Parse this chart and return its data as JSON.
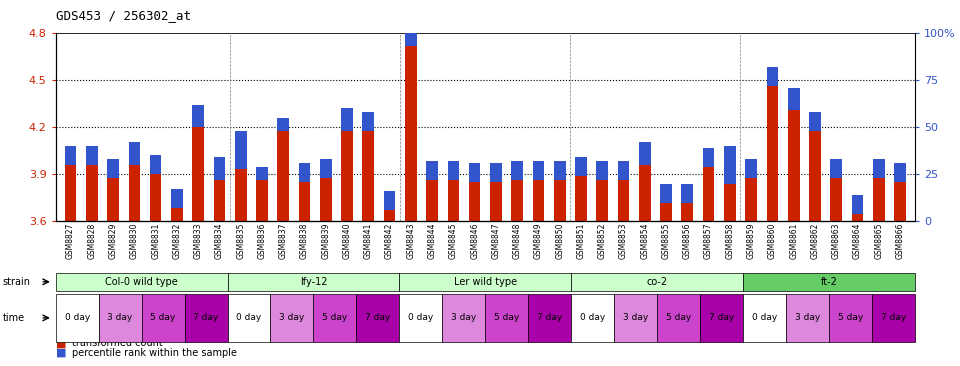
{
  "title": "GDS453 / 256302_at",
  "samples": [
    "GSM8827",
    "GSM8828",
    "GSM8829",
    "GSM8830",
    "GSM8831",
    "GSM8832",
    "GSM8833",
    "GSM8834",
    "GSM8835",
    "GSM8836",
    "GSM8837",
    "GSM8838",
    "GSM8839",
    "GSM8840",
    "GSM8841",
    "GSM8842",
    "GSM8843",
    "GSM8844",
    "GSM8845",
    "GSM8846",
    "GSM8847",
    "GSM8848",
    "GSM8849",
    "GSM8850",
    "GSM8851",
    "GSM8852",
    "GSM8853",
    "GSM8854",
    "GSM8855",
    "GSM8856",
    "GSM8857",
    "GSM8858",
    "GSM8859",
    "GSM8860",
    "GSM8861",
    "GSM8862",
    "GSM8863",
    "GSM8864",
    "GSM8865",
    "GSM8866"
  ],
  "red_pct": [
    30,
    30,
    23,
    30,
    25,
    7,
    50,
    22,
    28,
    22,
    48,
    21,
    23,
    48,
    48,
    6,
    93,
    22,
    22,
    21,
    21,
    22,
    22,
    22,
    24,
    22,
    22,
    30,
    10,
    10,
    29,
    20,
    23,
    72,
    59,
    48,
    23,
    4,
    23,
    21
  ],
  "blue_pct": [
    10,
    10,
    10,
    12,
    10,
    10,
    12,
    12,
    20,
    7,
    7,
    10,
    10,
    12,
    10,
    10,
    10,
    10,
    10,
    10,
    10,
    10,
    10,
    10,
    10,
    10,
    10,
    12,
    10,
    10,
    10,
    20,
    10,
    10,
    12,
    10,
    10,
    10,
    10,
    10
  ],
  "ylim_left_vals": [
    3.6,
    3.9,
    4.2,
    4.5,
    4.8
  ],
  "yticks_right": [
    0,
    25,
    50,
    75,
    100
  ],
  "ytick_labels_right": [
    "0",
    "25",
    "50",
    "75",
    "100%"
  ],
  "strains": [
    {
      "label": "Col-0 wild type",
      "start": 0,
      "end": 8,
      "color": "#ccffcc"
    },
    {
      "label": "lfy-12",
      "start": 8,
      "end": 16,
      "color": "#ccffcc"
    },
    {
      "label": "Ler wild type",
      "start": 16,
      "end": 24,
      "color": "#ccffcc"
    },
    {
      "label": "co-2",
      "start": 24,
      "end": 32,
      "color": "#ccffcc"
    },
    {
      "label": "ft-2",
      "start": 32,
      "end": 40,
      "color": "#66cc66"
    }
  ],
  "time_labels": [
    "0 day",
    "3 day",
    "5 day",
    "7 day"
  ],
  "time_colors": [
    "white",
    "#dd88dd",
    "#cc44cc",
    "#aa00aa"
  ],
  "bar_color_red": "#cc2200",
  "bar_color_blue": "#3355cc",
  "bar_width": 0.55
}
